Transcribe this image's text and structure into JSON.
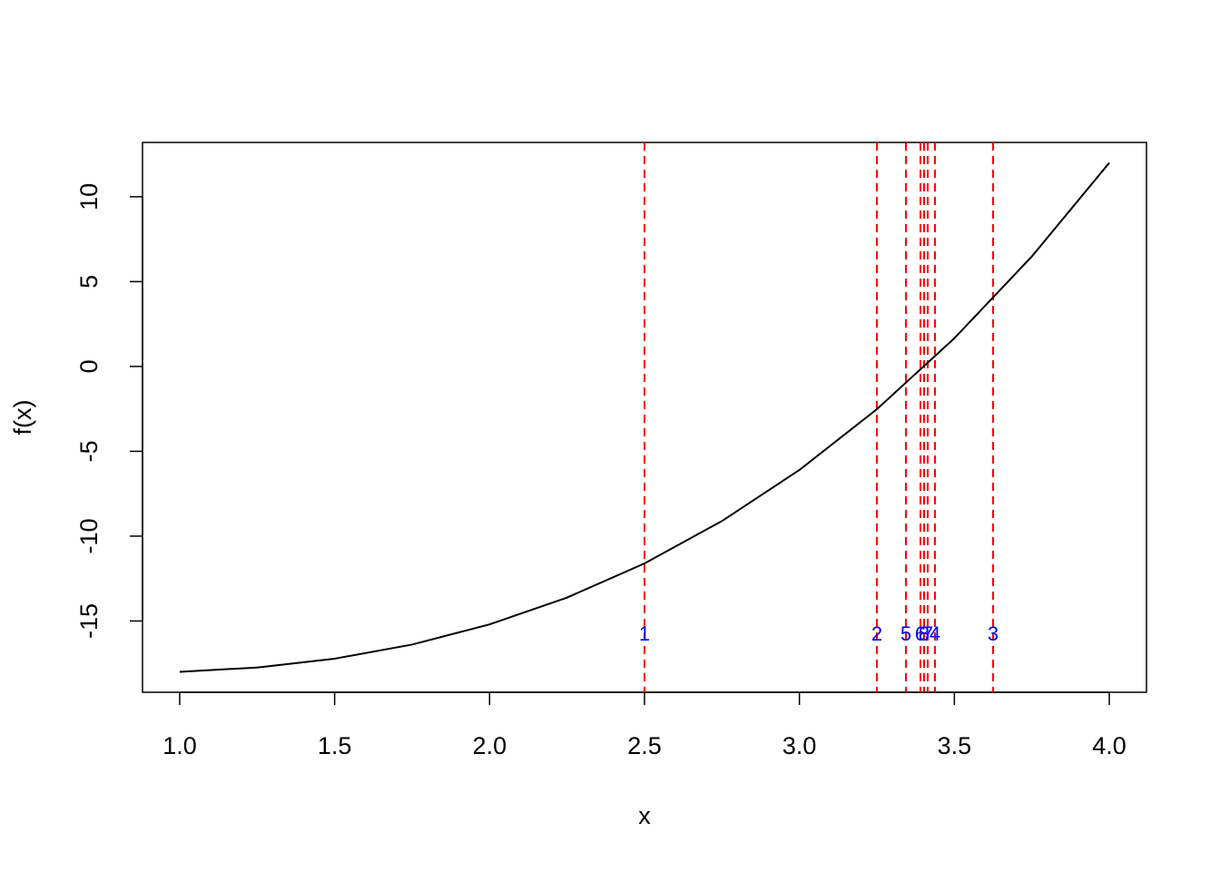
{
  "chart_data": {
    "type": "line",
    "xlabel": "x",
    "ylabel": "f(x)",
    "x": [
      1,
      1.25,
      1.5,
      1.75,
      2,
      2.25,
      2.5,
      2.75,
      3,
      3.25,
      3.5,
      3.75,
      4
    ],
    "series": [
      {
        "color": "#000000",
        "values": [
          -18,
          -17.74,
          -17.22,
          -16.39,
          -15.2,
          -13.62,
          -11.61,
          -9.11,
          -6.1,
          -2.52,
          1.66,
          6.48,
          12
        ]
      }
    ],
    "vlines": {
      "color": "#ff0000",
      "label_color": "#0000ff",
      "x": [
        2.5,
        3.25,
        3.625,
        3.4375,
        3.34375,
        3.390625,
        3.4140625,
        3.40234375
      ],
      "labels": [
        "1",
        "2",
        "3",
        "4",
        "5",
        "6",
        "7",
        "8"
      ]
    },
    "xlim": [
      0.88,
      4.12
    ],
    "ylim": [
      -19.2,
      13.2
    ],
    "xticks": [
      {
        "value": 1,
        "label": "1.0"
      },
      {
        "value": 1.5,
        "label": "1.5"
      },
      {
        "value": 2,
        "label": "2.0"
      },
      {
        "value": 2.5,
        "label": "2.5"
      },
      {
        "value": 3,
        "label": "3.0"
      },
      {
        "value": 3.5,
        "label": "3.5"
      },
      {
        "value": 4,
        "label": "4.0"
      }
    ],
    "yticks": [
      -15,
      -10,
      -5,
      0,
      5,
      10
    ]
  }
}
